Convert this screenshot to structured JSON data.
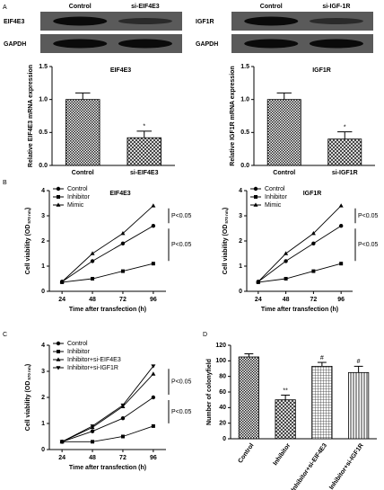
{
  "blots": [
    {
      "columns": [
        "Control",
        "si-EIF4E3"
      ],
      "rows": [
        "EIF4E3",
        "GAPDH"
      ]
    },
    {
      "columns": [
        "Control",
        "si-IGF-1R"
      ],
      "rows": [
        "IGF1R",
        "GAPDH"
      ]
    }
  ],
  "chart_data": [
    {
      "type": "bar",
      "panel": "A",
      "title": "EIF4E3",
      "ylabel": "Relative EIF4E3 mRNA expression",
      "categories": [
        "Control",
        "si-EIF4E3"
      ],
      "values": [
        1.0,
        0.42
      ],
      "errors": [
        0.1,
        0.1
      ],
      "patterns": [
        "checker",
        "cross"
      ],
      "ylim": [
        0,
        1.5
      ],
      "yticks": [
        {
          "value": 0,
          "label": "0.0"
        },
        0.5,
        {
          "value": 1,
          "label": "1.0"
        },
        1.5
      ],
      "annotations": [
        {
          "text": "*",
          "category": "si-EIF4E3"
        }
      ]
    },
    {
      "type": "bar",
      "title": "IGF1R",
      "ylabel": "Relative IGF1R mRNA expression",
      "categories": [
        "Control",
        "si-IGF1R"
      ],
      "values": [
        1.0,
        0.4
      ],
      "errors": [
        0.1,
        0.11
      ],
      "patterns": [
        "checker",
        "cross"
      ],
      "ylim": [
        0,
        1.5
      ],
      "yticks": [
        {
          "value": 0,
          "label": "0.0"
        },
        0.5,
        {
          "value": 1,
          "label": "1.0"
        },
        1.5
      ],
      "annotations": [
        {
          "text": "*",
          "category": "si-IGF1R"
        }
      ]
    },
    {
      "type": "line",
      "panel": "B",
      "title": "EIF4E3",
      "ylabel": "Cell viability (OD",
      "ylabel_sub": "570 nm",
      "ylabel_end": ")",
      "xlabel": "Time after transfection (h)",
      "x": [
        24,
        48,
        72,
        96
      ],
      "xlim": [
        14,
        106
      ],
      "xticks": [
        24,
        48,
        72,
        96
      ],
      "ylim": [
        0,
        4
      ],
      "yticks": [
        0,
        1,
        2,
        3,
        4
      ],
      "series": [
        {
          "name": "Control",
          "color": "#000000",
          "marker": "circle",
          "values": [
            0.38,
            1.2,
            1.9,
            2.6
          ]
        },
        {
          "name": "Inhibitor",
          "color": "#000000",
          "marker": "square",
          "values": [
            0.36,
            0.5,
            0.8,
            1.1
          ]
        },
        {
          "name": "Mimic",
          "color": "#000000",
          "marker": "triangle",
          "values": [
            0.38,
            1.5,
            2.3,
            3.4
          ]
        }
      ],
      "annotations": [
        {
          "text": "P<0.05",
          "between": [
            "Mimic",
            "Control"
          ]
        },
        {
          "text": "P<0.05",
          "between": [
            "Control",
            "Inhibitor"
          ]
        }
      ]
    },
    {
      "type": "line",
      "title": "IGF1R",
      "ylabel": "Cell viability (OD",
      "ylabel_sub": "570 nm",
      "ylabel_end": ")",
      "xlabel": "Time after transfection (h)",
      "x": [
        24,
        48,
        72,
        96
      ],
      "xlim": [
        14,
        106
      ],
      "xticks": [
        24,
        48,
        72,
        96
      ],
      "ylim": [
        0,
        4
      ],
      "yticks": [
        0,
        1,
        2,
        3,
        4
      ],
      "series": [
        {
          "name": "Control",
          "color": "#000000",
          "marker": "circle",
          "values": [
            0.38,
            1.2,
            1.9,
            2.6
          ]
        },
        {
          "name": "Inhibitor",
          "color": "#000000",
          "marker": "square",
          "values": [
            0.36,
            0.5,
            0.8,
            1.1
          ]
        },
        {
          "name": "Mimic",
          "color": "#000000",
          "marker": "triangle",
          "values": [
            0.38,
            1.5,
            2.3,
            3.4
          ]
        }
      ],
      "annotations": [
        {
          "text": "P<0.05",
          "between": [
            "Mimic",
            "Control"
          ]
        },
        {
          "text": "P<0.05",
          "between": [
            "Control",
            "Inhibitor"
          ]
        }
      ]
    },
    {
      "type": "line",
      "panel": "C",
      "ylabel": "Cell viability (OD",
      "ylabel_sub": "570 nm",
      "ylabel_end": ")",
      "xlabel": "Time after transfection (h)",
      "x": [
        24,
        48,
        72,
        96
      ],
      "xlim": [
        14,
        106
      ],
      "xticks": [
        24,
        48,
        72,
        96
      ],
      "ylim": [
        0,
        4
      ],
      "yticks": [
        0,
        1,
        2,
        3,
        4
      ],
      "series": [
        {
          "name": "Control",
          "color": "#000000",
          "marker": "circle",
          "values": [
            0.3,
            0.7,
            1.2,
            2.0
          ]
        },
        {
          "name": "Inhibitor",
          "color": "#000000",
          "marker": "square",
          "values": [
            0.3,
            0.3,
            0.5,
            0.9
          ]
        },
        {
          "name": "Inhibitor+si-EIF4E3",
          "color": "#000000",
          "marker": "triangle",
          "values": [
            0.3,
            0.85,
            1.65,
            2.9
          ]
        },
        {
          "name": "Inhibitor+si-IGF1R",
          "color": "#000000",
          "marker": "down",
          "values": [
            0.3,
            0.9,
            1.7,
            3.2
          ]
        }
      ],
      "annotations": [
        {
          "text": "P<0.05",
          "between": [
            "Inhibitor+si-IGF1R",
            "Control"
          ]
        },
        {
          "text": "P<0.05",
          "between": [
            "Control",
            "Inhibitor"
          ]
        }
      ]
    },
    {
      "type": "bar",
      "panel": "D",
      "ylabel": "Number of colonyfield",
      "rotate_labels": true,
      "categories": [
        "Control",
        "Inhibitor",
        "Inhibitor+si-EIF4E3",
        "Inhibitor+si-IGF1R"
      ],
      "values": [
        105,
        50,
        93,
        85
      ],
      "errors": [
        4,
        6,
        5,
        8
      ],
      "patterns": [
        "checker",
        "cross",
        "grid",
        "vertical"
      ],
      "ylim": [
        0,
        120
      ],
      "yticks": [
        0,
        20,
        40,
        60,
        80,
        100,
        120
      ],
      "annotations": [
        {
          "text": "**",
          "category": "Inhibitor"
        },
        {
          "text": "#",
          "category": "Inhibitor+si-EIF4E3"
        },
        {
          "text": "#",
          "category": "Inhibitor+si-IGF1R"
        }
      ]
    }
  ]
}
